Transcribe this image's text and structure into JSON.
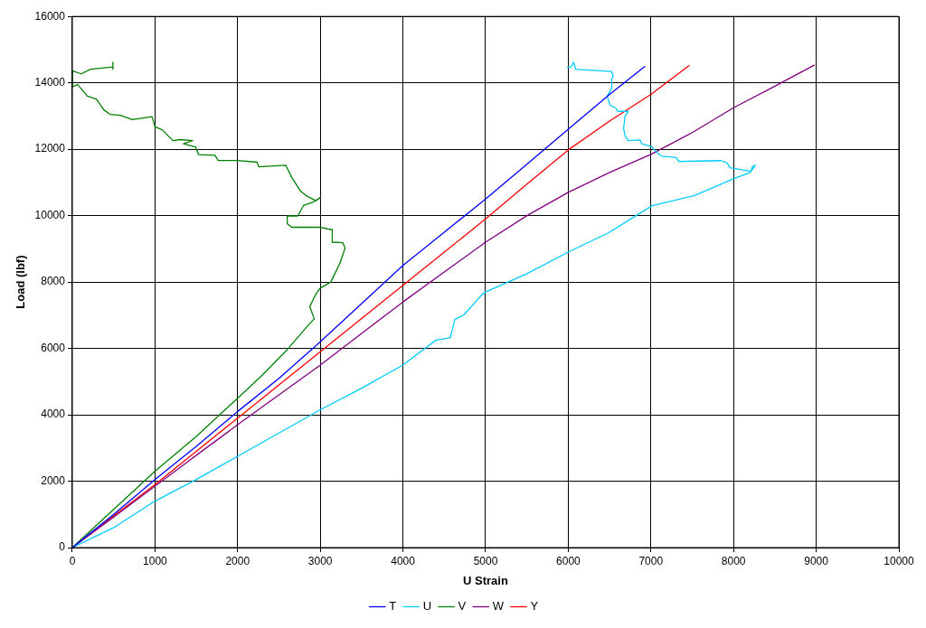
{
  "chart_data": {
    "type": "line",
    "xlabel": "U Strain",
    "ylabel": "Load (lbf)",
    "xlim": [
      0,
      10000
    ],
    "ylim": [
      0,
      16000
    ],
    "xticks": [
      0,
      1000,
      2000,
      3000,
      4000,
      5000,
      6000,
      7000,
      8000,
      9000,
      10000
    ],
    "yticks": [
      0,
      2000,
      4000,
      6000,
      8000,
      10000,
      12000,
      14000,
      16000
    ],
    "grid": true,
    "legend": "bottom",
    "marker": "none",
    "line_style": "solid",
    "series": [
      {
        "name": "T",
        "color": "#0000ff",
        "x": [
          0,
          500,
          1000,
          1500,
          2000,
          2500,
          3000,
          3500,
          4000,
          4500,
          5000,
          5500,
          6000,
          6500,
          6930
        ],
        "values": [
          0,
          1000,
          2050,
          3050,
          4100,
          5100,
          6200,
          7350,
          8500,
          9500,
          10500,
          11550,
          12600,
          13650,
          14500
        ]
      },
      {
        "name": "U",
        "color": "#00ccff",
        "x": [
          0,
          500,
          1000,
          1500,
          2000,
          2500,
          3000,
          3500,
          4000,
          4400,
          4573,
          4628,
          4737,
          4956,
          5000,
          5500,
          6000,
          6500,
          7014,
          7521,
          7993,
          8200,
          8264,
          8228,
          8210,
          7957,
          7920,
          7848,
          7341,
          7304,
          7123,
          7033,
          7014,
          6888,
          6870,
          6725,
          6688,
          6670,
          6688,
          6725,
          6598,
          6580,
          6507,
          6471,
          6525,
          6525,
          6543,
          6525,
          6217,
          6090,
          6065,
          6036,
          5982
        ],
        "values": [
          0,
          600,
          1400,
          2050,
          2750,
          3450,
          4150,
          4800,
          5500,
          6250,
          6316,
          6870,
          7008,
          7618,
          7700,
          8250,
          8900,
          9500,
          10300,
          10600,
          11100,
          11300,
          11519,
          11472,
          11333,
          11444,
          11593,
          11657,
          11630,
          11750,
          11796,
          12000,
          12074,
          12167,
          12278,
          12260,
          12400,
          12630,
          13000,
          13140,
          13140,
          13230,
          13325,
          13600,
          13833,
          14111,
          14204,
          14343,
          14390,
          14407,
          14620,
          14480,
          14463
        ]
      },
      {
        "name": "V",
        "color": "#008000",
        "x": [
          0,
          500,
          1000,
          1500,
          2000,
          2300,
          2600,
          2855,
          2927,
          2873,
          2945,
          3000,
          3127,
          3236,
          3300,
          3273,
          3145,
          3145,
          2982,
          2655,
          2600,
          2600,
          2727,
          2800,
          2909,
          3000,
          2945,
          2836,
          2764,
          2655,
          2582,
          2255,
          2236,
          2000,
          1764,
          1727,
          1527,
          1491,
          1345,
          1455,
          1309,
          1218,
          1091,
          1000,
          964,
          727,
          582,
          455,
          382,
          291,
          182,
          65,
          0,
          0,
          109,
          218,
          491,
          491,
          491
        ],
        "values": [
          0,
          1150,
          2300,
          3350,
          4500,
          5200,
          5963,
          6700,
          6890,
          7260,
          7630,
          7815,
          8000,
          8555,
          9020,
          9185,
          9200,
          9575,
          9650,
          9650,
          9760,
          9990,
          9990,
          10315,
          10400,
          10545,
          10450,
          10590,
          10730,
          11150,
          11520,
          11470,
          11610,
          11660,
          11660,
          11815,
          11840,
          12070,
          12165,
          12260,
          12290,
          12260,
          12580,
          12680,
          12980,
          12890,
          13020,
          13050,
          13185,
          13510,
          13600,
          13945,
          13880,
          14360,
          14270,
          14410,
          14480,
          14620,
          14410
        ]
      },
      {
        "name": "W",
        "color": "#800080",
        "x": [
          0,
          500,
          1000,
          1500,
          2000,
          2500,
          3000,
          3500,
          4000,
          4500,
          5000,
          5500,
          6000,
          6500,
          7000,
          7500,
          8000,
          8500,
          8980
        ],
        "values": [
          0,
          920,
          1850,
          2780,
          3700,
          4600,
          5500,
          6450,
          7400,
          8300,
          9200,
          10000,
          10700,
          11300,
          11843,
          12500,
          13250,
          13900,
          14540
        ]
      },
      {
        "name": "Y",
        "color": "#ff0000",
        "x": [
          0,
          500,
          1000,
          1500,
          2000,
          2500,
          3000,
          3500,
          4000,
          4500,
          5000,
          5500,
          6000,
          6500,
          7000,
          7467
        ],
        "values": [
          0,
          950,
          1900,
          2900,
          3900,
          4900,
          5900,
          6900,
          7900,
          8900,
          9900,
          10950,
          11980,
          12850,
          13650,
          14528
        ]
      }
    ]
  }
}
